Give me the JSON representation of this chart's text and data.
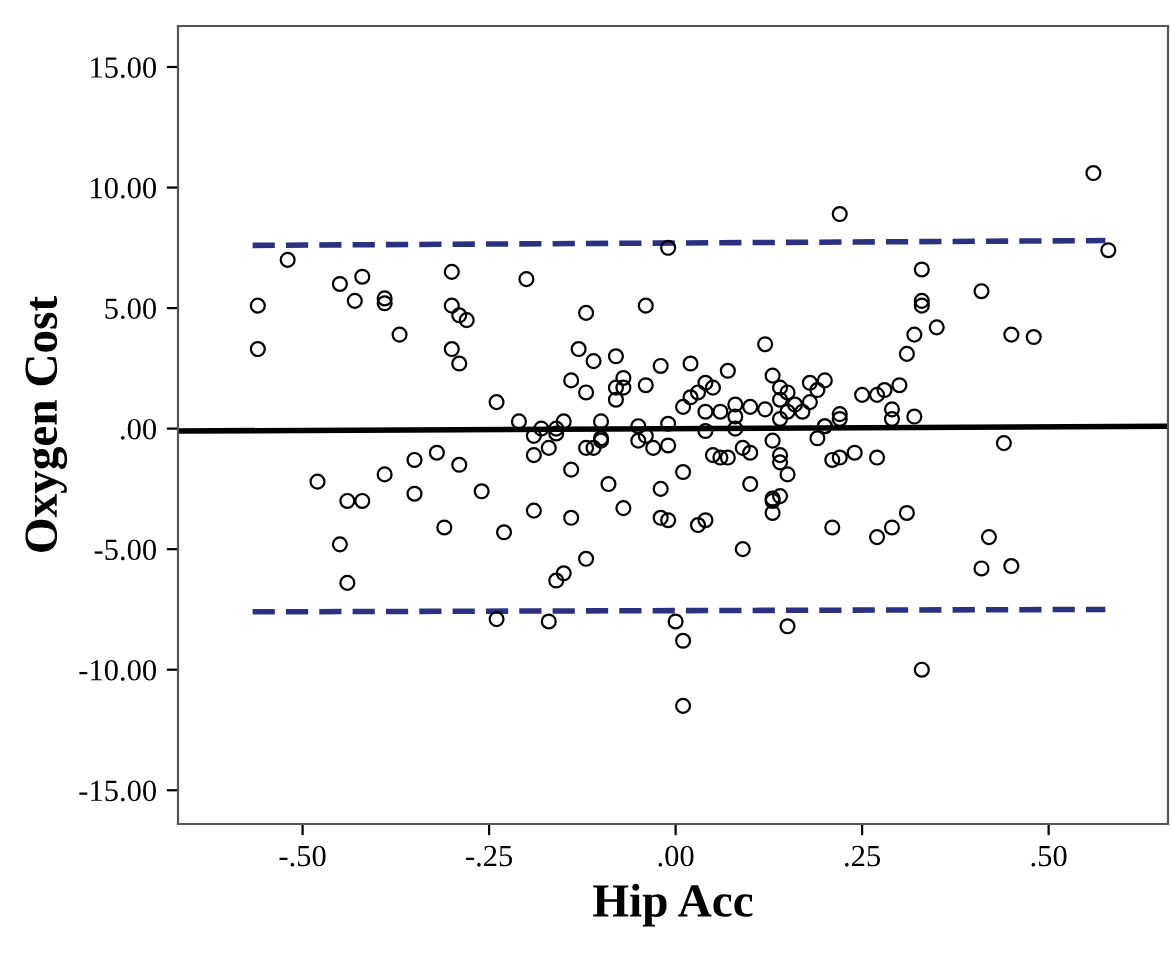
{
  "chart_data": {
    "type": "scatter",
    "xlabel": "Hip Acc",
    "ylabel": "Oxygen Cost",
    "xlim": [
      -0.667,
      0.66
    ],
    "ylim": [
      -16.4,
      16.7
    ],
    "xticks": [
      {
        "value": -0.5,
        "label": "-.50"
      },
      {
        "value": -0.25,
        "label": "-.25"
      },
      {
        "value": 0,
        "label": ".00"
      },
      {
        "value": 0.25,
        "label": ".25"
      },
      {
        "value": 0.5,
        "label": ".50"
      }
    ],
    "yticks": [
      {
        "value": -15,
        "label": "-15.00"
      },
      {
        "value": -10,
        "label": "-10.00"
      },
      {
        "value": -5,
        "label": "-5.00"
      },
      {
        "value": 0,
        "label": ".00"
      },
      {
        "value": 5,
        "label": "5.00"
      },
      {
        "value": 10,
        "label": "10.00"
      },
      {
        "value": 15,
        "label": "15.00"
      }
    ],
    "grid": false,
    "legend": false,
    "marker": "circle",
    "series": [
      {
        "color": "#000000",
        "x": [
          -0.56,
          -0.56,
          -0.52,
          -0.45,
          -0.43,
          -0.42,
          -0.39,
          -0.39,
          -0.37,
          -0.48,
          -0.44,
          -0.42,
          -0.39,
          -0.45,
          -0.44,
          -0.3,
          -0.3,
          -0.29,
          -0.28,
          -0.3,
          -0.29,
          -0.2,
          -0.24,
          -0.12,
          -0.04,
          -0.01,
          -0.13,
          -0.11,
          -0.08,
          -0.14,
          -0.12,
          -0.07,
          -0.07,
          -0.08,
          -0.08,
          -0.04,
          -0.02,
          0.02,
          0.04,
          0.05,
          0.02,
          0.01,
          0.04,
          -0.21,
          -0.19,
          -0.18,
          -0.16,
          -0.16,
          -0.15,
          -0.19,
          -0.17,
          -0.12,
          -0.11,
          -0.1,
          -0.1,
          -0.1,
          -0.05,
          -0.05,
          -0.04,
          -0.03,
          -0.01,
          -0.01,
          0.04,
          0.05,
          -0.32,
          -0.35,
          -0.29,
          -0.14,
          -0.09,
          0.01,
          -0.02,
          -0.26,
          -0.35,
          0.56,
          0.22,
          0.58,
          0.33,
          0.41,
          0.33,
          0.33,
          0.35,
          0.32,
          0.45,
          0.48,
          0.31,
          0.12,
          0.07,
          0.03,
          0.06,
          0.08,
          0.1,
          0.08,
          0.08,
          0.13,
          0.14,
          0.15,
          0.14,
          0.15,
          0.12,
          0.16,
          0.17,
          0.18,
          0.19,
          0.2,
          0.18,
          0.22,
          0.22,
          0.2,
          0.25,
          0.27,
          0.28,
          0.3,
          0.29,
          0.32,
          0.29,
          0.14,
          0.13,
          0.14,
          0.14,
          0.15,
          0.1,
          0.09,
          0.1,
          0.06,
          0.07,
          0.19,
          0.2,
          0.21,
          0.22,
          0.24,
          0.27,
          0.44,
          0.13,
          0.14,
          -0.31,
          -0.23,
          -0.19,
          -0.14,
          -0.07,
          -0.02,
          -0.01,
          0.03,
          0.04,
          -0.12,
          -0.16,
          -0.15,
          -0.24,
          -0.17,
          0.0,
          0.01,
          0.01,
          0.09,
          0.13,
          0.13,
          0.21,
          0.27,
          0.29,
          0.31,
          0.42,
          0.41,
          0.45,
          0.15,
          0.33
        ],
        "values": [
          3.3,
          5.1,
          7.0,
          6.0,
          5.3,
          6.3,
          5.2,
          5.4,
          3.9,
          -2.2,
          -3.0,
          -3.0,
          -1.9,
          -4.8,
          -6.4,
          6.5,
          5.1,
          4.7,
          4.5,
          3.3,
          2.7,
          6.2,
          1.1,
          4.8,
          5.1,
          7.5,
          3.3,
          2.8,
          3.0,
          2.0,
          1.5,
          2.1,
          1.7,
          1.7,
          1.2,
          1.8,
          2.6,
          2.7,
          1.9,
          1.7,
          1.3,
          0.9,
          0.7,
          0.3,
          -0.3,
          0.0,
          0.0,
          -0.2,
          0.3,
          -1.1,
          -0.8,
          -0.8,
          -0.8,
          -0.5,
          -0.4,
          0.3,
          0.1,
          -0.5,
          -0.3,
          -0.8,
          0.2,
          -0.7,
          -0.1,
          -1.1,
          -1.0,
          -1.3,
          -1.5,
          -1.7,
          -2.3,
          -1.8,
          -2.5,
          -2.6,
          -2.7,
          10.6,
          8.9,
          7.4,
          6.6,
          5.7,
          5.3,
          5.1,
          4.2,
          3.9,
          3.9,
          3.8,
          3.1,
          3.5,
          2.4,
          1.5,
          0.7,
          1.0,
          0.9,
          0.5,
          0.0,
          2.2,
          1.7,
          1.5,
          1.2,
          0.7,
          0.8,
          1.0,
          0.7,
          1.9,
          1.6,
          2.0,
          1.1,
          0.6,
          0.4,
          0.1,
          1.4,
          1.4,
          1.6,
          1.8,
          0.8,
          0.5,
          0.4,
          0.4,
          -0.5,
          -1.1,
          -1.4,
          -1.9,
          -2.3,
          -0.8,
          -1.0,
          -1.2,
          -1.2,
          -0.4,
          0.1,
          -1.3,
          -1.2,
          -1.0,
          -1.2,
          -0.6,
          -2.9,
          -2.8,
          -4.1,
          -4.3,
          -3.4,
          -3.7,
          -3.3,
          -3.7,
          -3.8,
          -4.0,
          -3.8,
          -5.4,
          -6.3,
          -6.0,
          -7.9,
          -8.0,
          -8.0,
          -8.8,
          -11.5,
          -5.0,
          -3.5,
          -3.0,
          -4.1,
          -4.5,
          -4.1,
          -3.5,
          -4.5,
          -5.8,
          -5.7,
          -8.2,
          -10.0
        ]
      },
      {
        "type": "line",
        "marker": "none",
        "line_style": "solid",
        "color": "#000000",
        "x": [
          -0.667,
          0.66
        ],
        "values": [
          -0.1,
          0.1
        ]
      },
      {
        "type": "line",
        "marker": "none",
        "line_style": "dashed",
        "color": "#2b3080",
        "x": [
          -0.567,
          0.576
        ],
        "values": [
          7.6,
          7.8
        ]
      },
      {
        "type": "line",
        "marker": "none",
        "line_style": "dashed",
        "color": "#2b3080",
        "x": [
          -0.567,
          0.576
        ],
        "values": [
          -7.6,
          -7.5
        ]
      }
    ]
  }
}
